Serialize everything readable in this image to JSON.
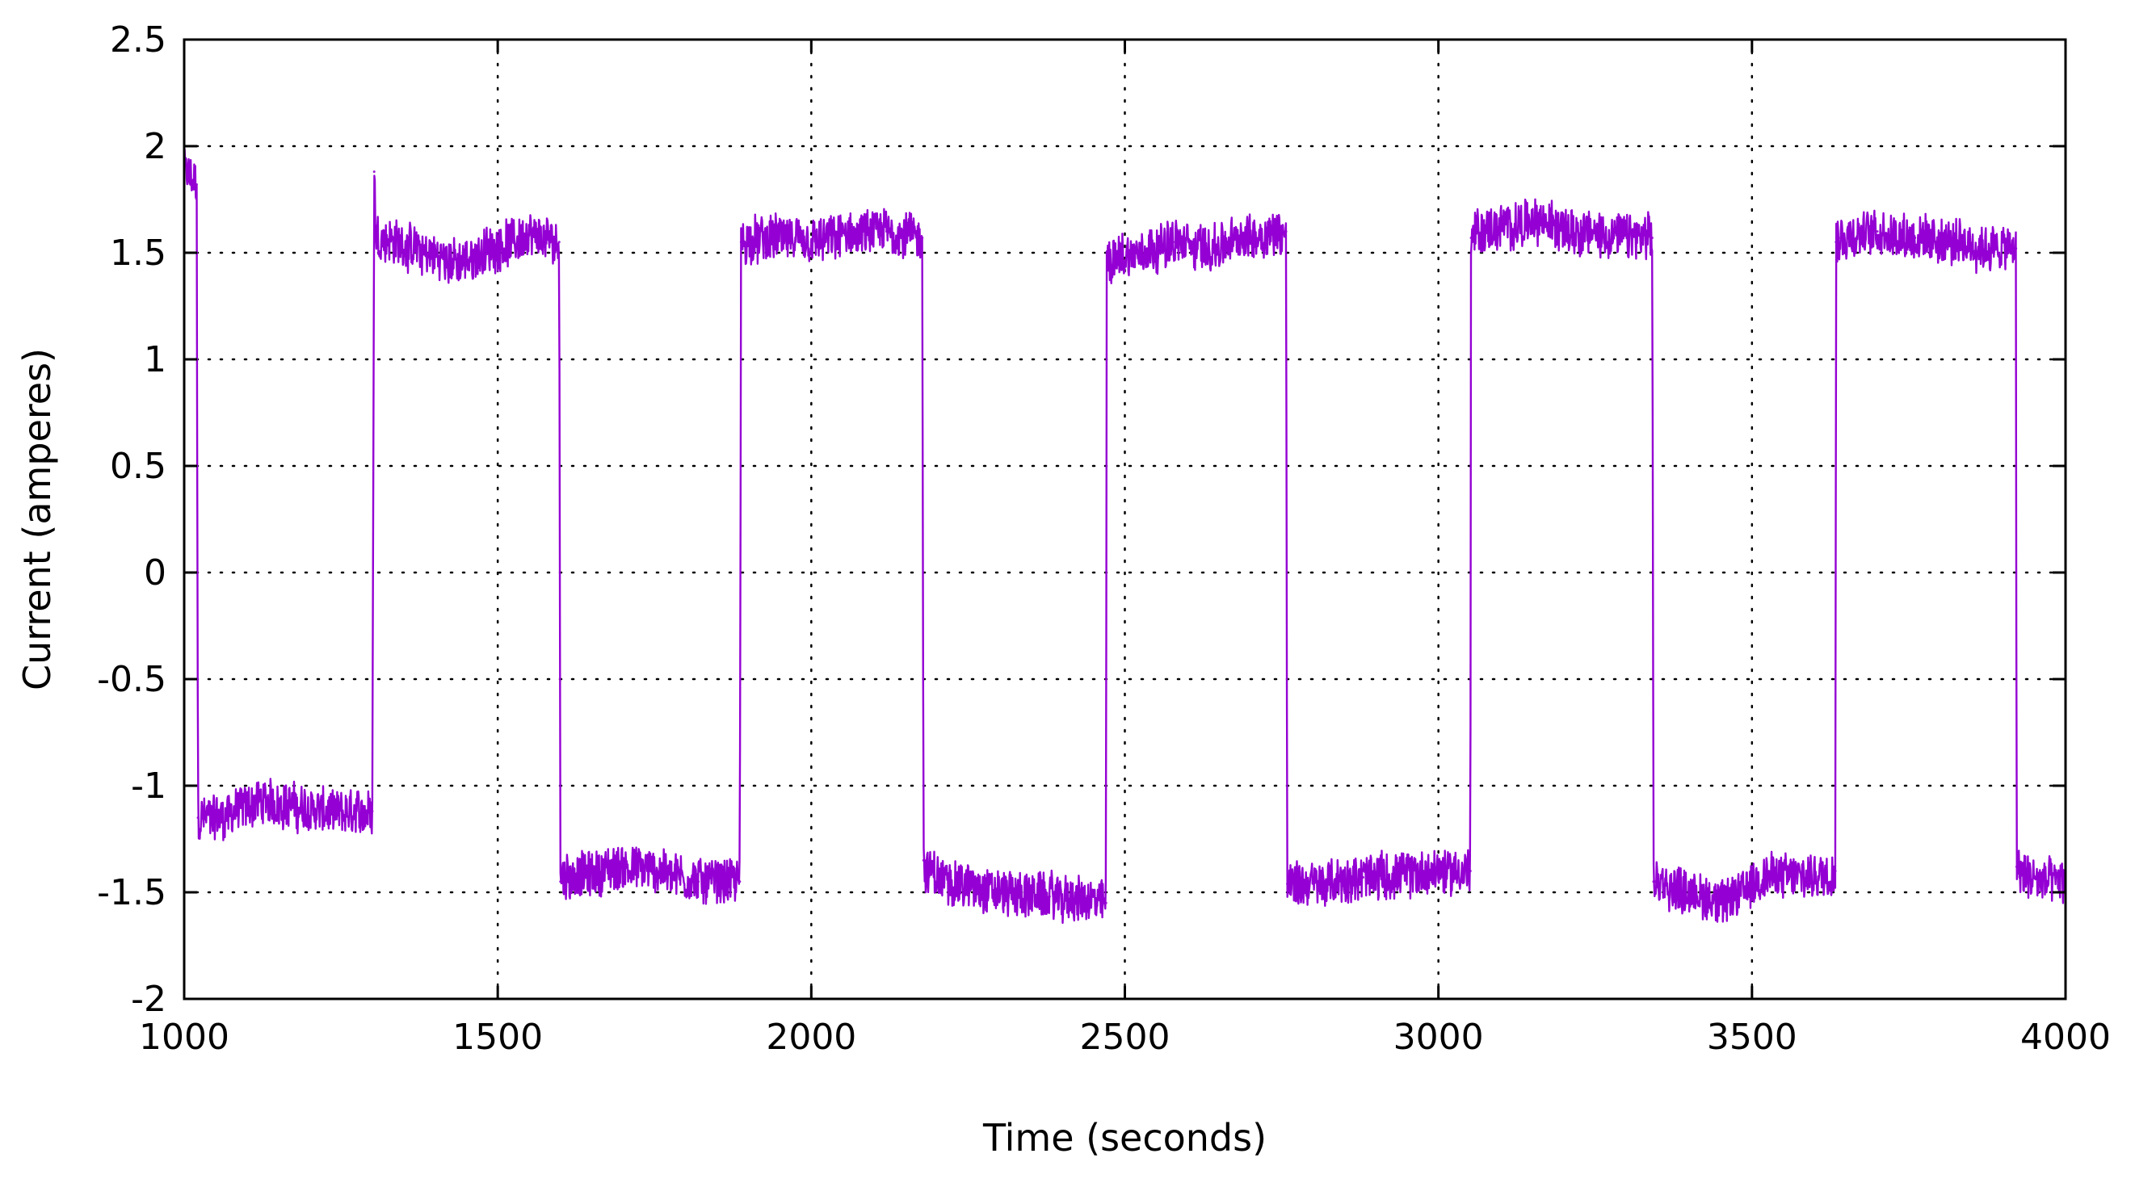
{
  "chart_data": {
    "type": "line",
    "title": "",
    "xlabel": "Time (seconds)",
    "ylabel": "Current (amperes)",
    "xlim": [
      1000,
      4000
    ],
    "ylim": [
      -2,
      2.5
    ],
    "x_ticks": [
      "1000",
      "1500",
      "2000",
      "2500",
      "3000",
      "3500",
      "4000"
    ],
    "y_ticks": [
      "2.5",
      "2",
      "1.5",
      "1",
      "0.5",
      "0",
      "-0.5",
      "-1",
      "-1.5",
      "-2"
    ],
    "grid": true,
    "legend": "none",
    "series": [
      {
        "color": "#9400d3",
        "noise_amplitude": 0.1,
        "x": [
          1000,
          1020,
          1022,
          1060,
          1120,
          1180,
          1240,
          1300,
          1303,
          1306,
          1330,
          1380,
          1440,
          1500,
          1550,
          1598,
          1600,
          1603,
          1640,
          1700,
          1760,
          1820,
          1886,
          1888,
          1891,
          1940,
          2000,
          2060,
          2120,
          2177,
          2179,
          2182,
          2230,
          2300,
          2380,
          2470,
          2471,
          2475,
          2520,
          2580,
          2640,
          2700,
          2757,
          2759,
          2762,
          2820,
          2880,
          2940,
          3000,
          3051,
          3052,
          3056,
          3100,
          3160,
          3220,
          3280,
          3341,
          3343,
          3346,
          3400,
          3460,
          3520,
          3580,
          3633,
          3634,
          3638,
          3700,
          3760,
          3820,
          3880,
          3921,
          3922,
          3926,
          3960,
          4000
        ],
        "y": [
          1.88,
          1.82,
          -1.15,
          -1.15,
          -1.07,
          -1.1,
          -1.13,
          -1.12,
          1.88,
          1.58,
          1.56,
          1.5,
          1.45,
          1.53,
          1.58,
          1.55,
          -1.45,
          -1.42,
          -1.42,
          -1.38,
          -1.4,
          -1.45,
          -1.45,
          1.55,
          1.55,
          1.57,
          1.55,
          1.58,
          1.6,
          1.57,
          -1.35,
          -1.4,
          -1.46,
          -1.5,
          -1.52,
          -1.55,
          1.5,
          1.47,
          1.5,
          1.55,
          1.52,
          1.58,
          1.6,
          -1.46,
          -1.46,
          -1.46,
          -1.43,
          -1.42,
          -1.4,
          -1.4,
          1.57,
          1.59,
          1.62,
          1.65,
          1.6,
          1.58,
          1.57,
          -1.45,
          -1.45,
          -1.5,
          -1.55,
          -1.42,
          -1.43,
          -1.4,
          1.55,
          1.57,
          1.6,
          1.57,
          1.55,
          1.52,
          1.52,
          -1.38,
          -1.4,
          -1.45,
          -1.45
        ]
      }
    ]
  }
}
